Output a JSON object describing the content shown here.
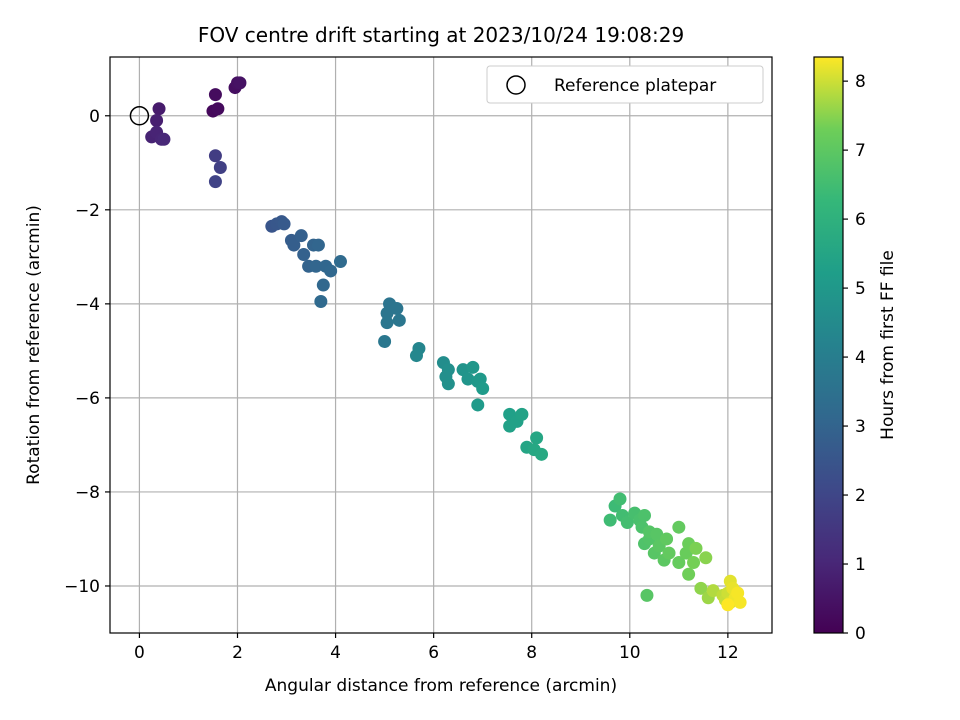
{
  "chart_data": {
    "type": "scatter",
    "title": "FOV centre drift starting at 2023/10/24 19:08:29",
    "xlabel": "Angular distance from reference (arcmin)",
    "ylabel": "Rotation from reference (arcmin)",
    "xlim": [
      -0.6,
      12.9
    ],
    "ylim": [
      -11.0,
      1.25
    ],
    "xticks": [
      0,
      2,
      4,
      6,
      8,
      10,
      12
    ],
    "yticks": [
      0,
      -2,
      -4,
      -6,
      -8,
      -10
    ],
    "grid": true,
    "legend": {
      "placement": "upper-right",
      "entries": [
        "Reference platepar"
      ]
    },
    "reference_point": {
      "x": 0,
      "y": 0,
      "label": "Reference platepar"
    },
    "colorbar": {
      "label": "Hours from first FF file",
      "range": [
        0,
        8.35
      ],
      "ticks": [
        0,
        1,
        2,
        3,
        4,
        5,
        6,
        7,
        8
      ],
      "colormap": "viridis"
    },
    "points": [
      [
        1.5,
        0.1,
        0.2
      ],
      [
        1.6,
        0.15,
        0.25
      ],
      [
        1.55,
        0.45,
        0.3
      ],
      [
        1.95,
        0.6,
        0.35
      ],
      [
        2.0,
        0.7,
        0.4
      ],
      [
        2.05,
        0.7,
        0.45
      ],
      [
        0.4,
        0.15,
        0.7
      ],
      [
        0.35,
        -0.1,
        0.8
      ],
      [
        0.25,
        -0.45,
        0.9
      ],
      [
        0.35,
        -0.35,
        0.95
      ],
      [
        0.45,
        -0.5,
        1.0
      ],
      [
        0.5,
        -0.5,
        1.05
      ],
      [
        1.55,
        -0.85,
        1.7
      ],
      [
        1.65,
        -1.1,
        1.8
      ],
      [
        1.55,
        -1.4,
        1.9
      ],
      [
        2.7,
        -2.35,
        2.5
      ],
      [
        2.8,
        -2.3,
        2.55
      ],
      [
        2.9,
        -2.25,
        2.6
      ],
      [
        2.95,
        -2.3,
        2.65
      ],
      [
        3.1,
        -2.65,
        2.75
      ],
      [
        3.15,
        -2.75,
        2.8
      ],
      [
        3.3,
        -2.55,
        2.85
      ],
      [
        3.35,
        -2.95,
        2.9
      ],
      [
        3.45,
        -3.2,
        2.95
      ],
      [
        3.55,
        -2.75,
        3.0
      ],
      [
        3.65,
        -2.75,
        3.05
      ],
      [
        3.6,
        -3.2,
        3.05
      ],
      [
        3.8,
        -3.2,
        3.1
      ],
      [
        3.75,
        -3.6,
        3.15
      ],
      [
        3.9,
        -3.3,
        3.15
      ],
      [
        3.7,
        -3.95,
        3.2
      ],
      [
        4.1,
        -3.1,
        3.25
      ],
      [
        5.1,
        -4.0,
        3.6
      ],
      [
        5.05,
        -4.2,
        3.65
      ],
      [
        5.25,
        -4.1,
        3.65
      ],
      [
        5.3,
        -4.35,
        3.7
      ],
      [
        5.0,
        -4.8,
        3.75
      ],
      [
        5.05,
        -4.4,
        3.7
      ],
      [
        5.7,
        -4.95,
        4.3
      ],
      [
        5.65,
        -5.1,
        4.35
      ],
      [
        6.2,
        -5.25,
        4.6
      ],
      [
        6.25,
        -5.55,
        4.65
      ],
      [
        6.3,
        -5.4,
        4.65
      ],
      [
        6.3,
        -5.7,
        4.7
      ],
      [
        6.6,
        -5.4,
        4.85
      ],
      [
        6.7,
        -5.6,
        4.9
      ],
      [
        6.8,
        -5.35,
        4.95
      ],
      [
        6.9,
        -5.65,
        5.0
      ],
      [
        6.95,
        -5.6,
        5.05
      ],
      [
        7.0,
        -5.8,
        5.1
      ],
      [
        6.9,
        -6.15,
        5.1
      ],
      [
        7.55,
        -6.35,
        5.3
      ],
      [
        7.55,
        -6.6,
        5.35
      ],
      [
        7.7,
        -6.5,
        5.35
      ],
      [
        7.8,
        -6.35,
        5.4
      ],
      [
        7.9,
        -7.05,
        5.5
      ],
      [
        8.1,
        -6.85,
        5.55
      ],
      [
        8.05,
        -7.1,
        5.6
      ],
      [
        8.2,
        -7.2,
        5.65
      ],
      [
        9.7,
        -8.3,
        6.4
      ],
      [
        9.6,
        -8.6,
        6.45
      ],
      [
        9.8,
        -8.15,
        6.5
      ],
      [
        9.85,
        -8.5,
        6.5
      ],
      [
        9.95,
        -8.65,
        6.55
      ],
      [
        10.1,
        -8.45,
        6.6
      ],
      [
        10.2,
        -8.6,
        6.65
      ],
      [
        10.25,
        -8.75,
        6.7
      ],
      [
        10.3,
        -8.5,
        6.7
      ],
      [
        10.3,
        -9.1,
        6.75
      ],
      [
        10.4,
        -9.0,
        6.8
      ],
      [
        10.4,
        -8.85,
        6.85
      ],
      [
        10.5,
        -9.3,
        6.9
      ],
      [
        10.55,
        -8.9,
        6.9
      ],
      [
        10.6,
        -9.15,
        6.95
      ],
      [
        10.7,
        -9.45,
        7.0
      ],
      [
        10.75,
        -9.0,
        7.05
      ],
      [
        10.8,
        -9.3,
        7.1
      ],
      [
        10.35,
        -10.2,
        6.9
      ],
      [
        11.0,
        -8.75,
        7.1
      ],
      [
        11.0,
        -9.5,
        7.15
      ],
      [
        11.15,
        -9.3,
        7.2
      ],
      [
        11.2,
        -9.1,
        7.25
      ],
      [
        11.2,
        -9.75,
        7.3
      ],
      [
        11.3,
        -9.5,
        7.35
      ],
      [
        11.35,
        -9.2,
        7.4
      ],
      [
        11.45,
        -10.05,
        7.55
      ],
      [
        11.55,
        -9.4,
        7.5
      ],
      [
        11.6,
        -10.25,
        7.65
      ],
      [
        11.7,
        -10.1,
        7.8
      ],
      [
        11.9,
        -10.2,
        7.9
      ],
      [
        11.95,
        -10.3,
        7.95
      ],
      [
        12.0,
        -10.15,
        8.0
      ],
      [
        12.05,
        -10.35,
        8.1
      ],
      [
        12.05,
        -9.9,
        8.15
      ],
      [
        12.1,
        -10.05,
        8.2
      ],
      [
        12.15,
        -10.25,
        8.25
      ],
      [
        12.2,
        -10.15,
        8.3
      ],
      [
        12.25,
        -10.35,
        8.3
      ],
      [
        12.0,
        -10.4,
        8.35
      ]
    ]
  }
}
